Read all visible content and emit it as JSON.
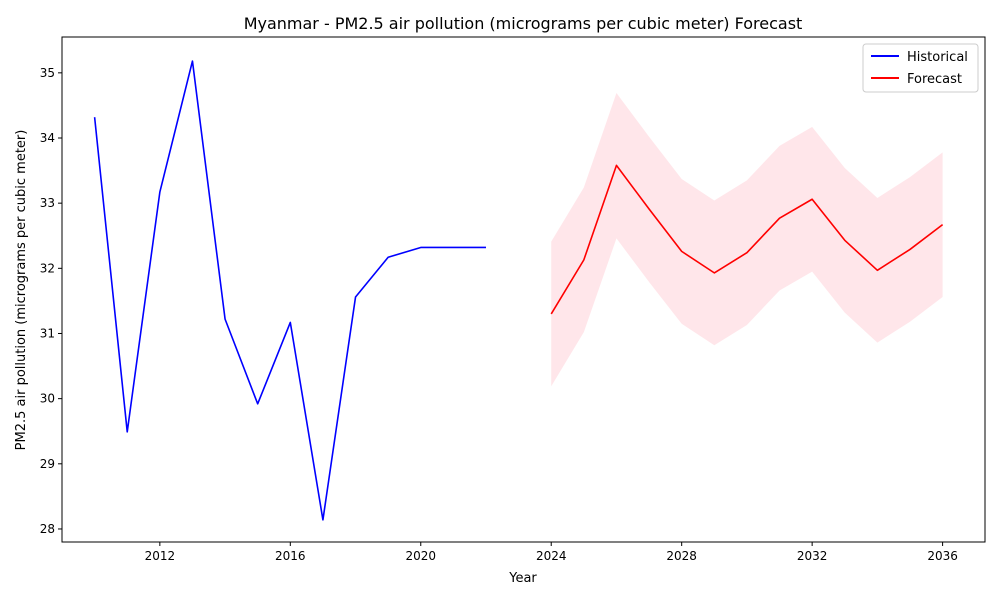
{
  "chart_data": {
    "type": "line",
    "title": "Myanmar - PM2.5 air pollution (micrograms per cubic meter) Forecast",
    "xlabel": "Year",
    "ylabel": "PM2.5 air pollution (micrograms per cubic meter)",
    "xlim": [
      2009.0,
      2037.3
    ],
    "ylim": [
      27.8,
      35.55
    ],
    "xticks": [
      2012,
      2016,
      2020,
      2024,
      2028,
      2032,
      2036
    ],
    "yticks": [
      28,
      29,
      30,
      31,
      32,
      33,
      34,
      35
    ],
    "grid": false,
    "legend_position": "top-right",
    "series": [
      {
        "name": "Historical",
        "color": "#0000ff",
        "x": [
          2010,
          2011,
          2012,
          2013,
          2014,
          2015,
          2016,
          2017,
          2018,
          2019,
          2020,
          2021,
          2022
        ],
        "y": [
          34.32,
          29.49,
          33.17,
          35.18,
          31.22,
          29.92,
          31.17,
          28.14,
          31.56,
          32.17,
          32.32,
          32.32,
          32.32
        ]
      },
      {
        "name": "Forecast",
        "color": "#ff0000",
        "x": [
          2024,
          2025,
          2026,
          2027,
          2028,
          2029,
          2030,
          2031,
          2032,
          2033,
          2034,
          2035,
          2036
        ],
        "y": [
          31.3,
          32.13,
          33.58,
          32.91,
          32.26,
          31.93,
          32.24,
          32.77,
          33.06,
          32.43,
          31.97,
          32.29,
          32.67
        ],
        "lower": [
          30.19,
          31.02,
          32.46,
          31.79,
          31.15,
          30.82,
          31.13,
          31.66,
          31.95,
          31.32,
          30.86,
          31.18,
          31.56
        ],
        "upper": [
          32.41,
          33.24,
          34.69,
          34.02,
          33.37,
          33.04,
          33.35,
          33.88,
          34.17,
          33.54,
          33.08,
          33.4,
          33.78
        ],
        "band_color": "#ffc0cb"
      }
    ]
  }
}
